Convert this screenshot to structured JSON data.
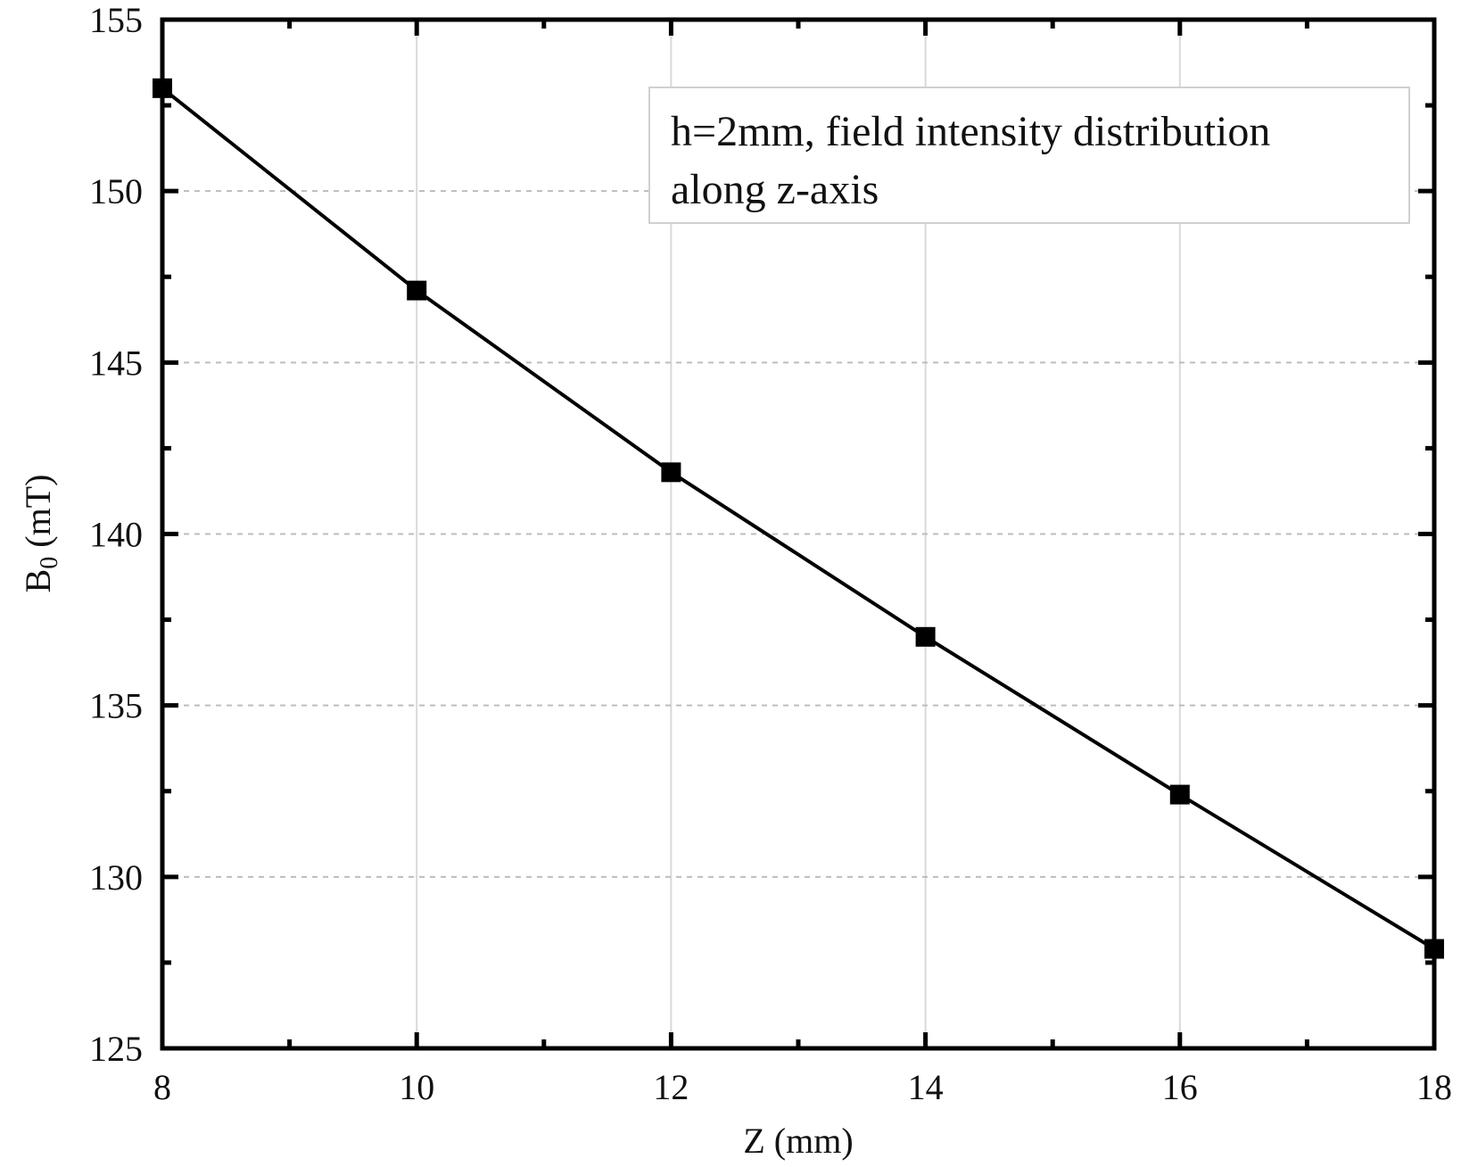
{
  "chart_data": {
    "type": "line",
    "title": "",
    "xlabel": "Z (mm)",
    "ylabel_main": "B",
    "ylabel_sub": "0",
    "ylabel_rest": " (mT)",
    "xlim": [
      8,
      18
    ],
    "ylim": [
      125,
      155
    ],
    "xticks": [
      8,
      10,
      12,
      14,
      16,
      18
    ],
    "yticks": [
      125,
      130,
      135,
      140,
      145,
      150,
      155
    ],
    "grid": {
      "x": true,
      "y": true,
      "y_style": "dashed"
    },
    "legend_position": "top-right",
    "annotation_lines": [
      "h=2mm, field intensity distribution",
      "along z-axis"
    ],
    "series": [
      {
        "x": [
          8,
          10,
          12,
          14,
          16,
          18
        ],
        "y": [
          153.0,
          147.1,
          141.8,
          137.0,
          132.4,
          127.9
        ],
        "marker": "square",
        "color": "#000000"
      }
    ]
  }
}
